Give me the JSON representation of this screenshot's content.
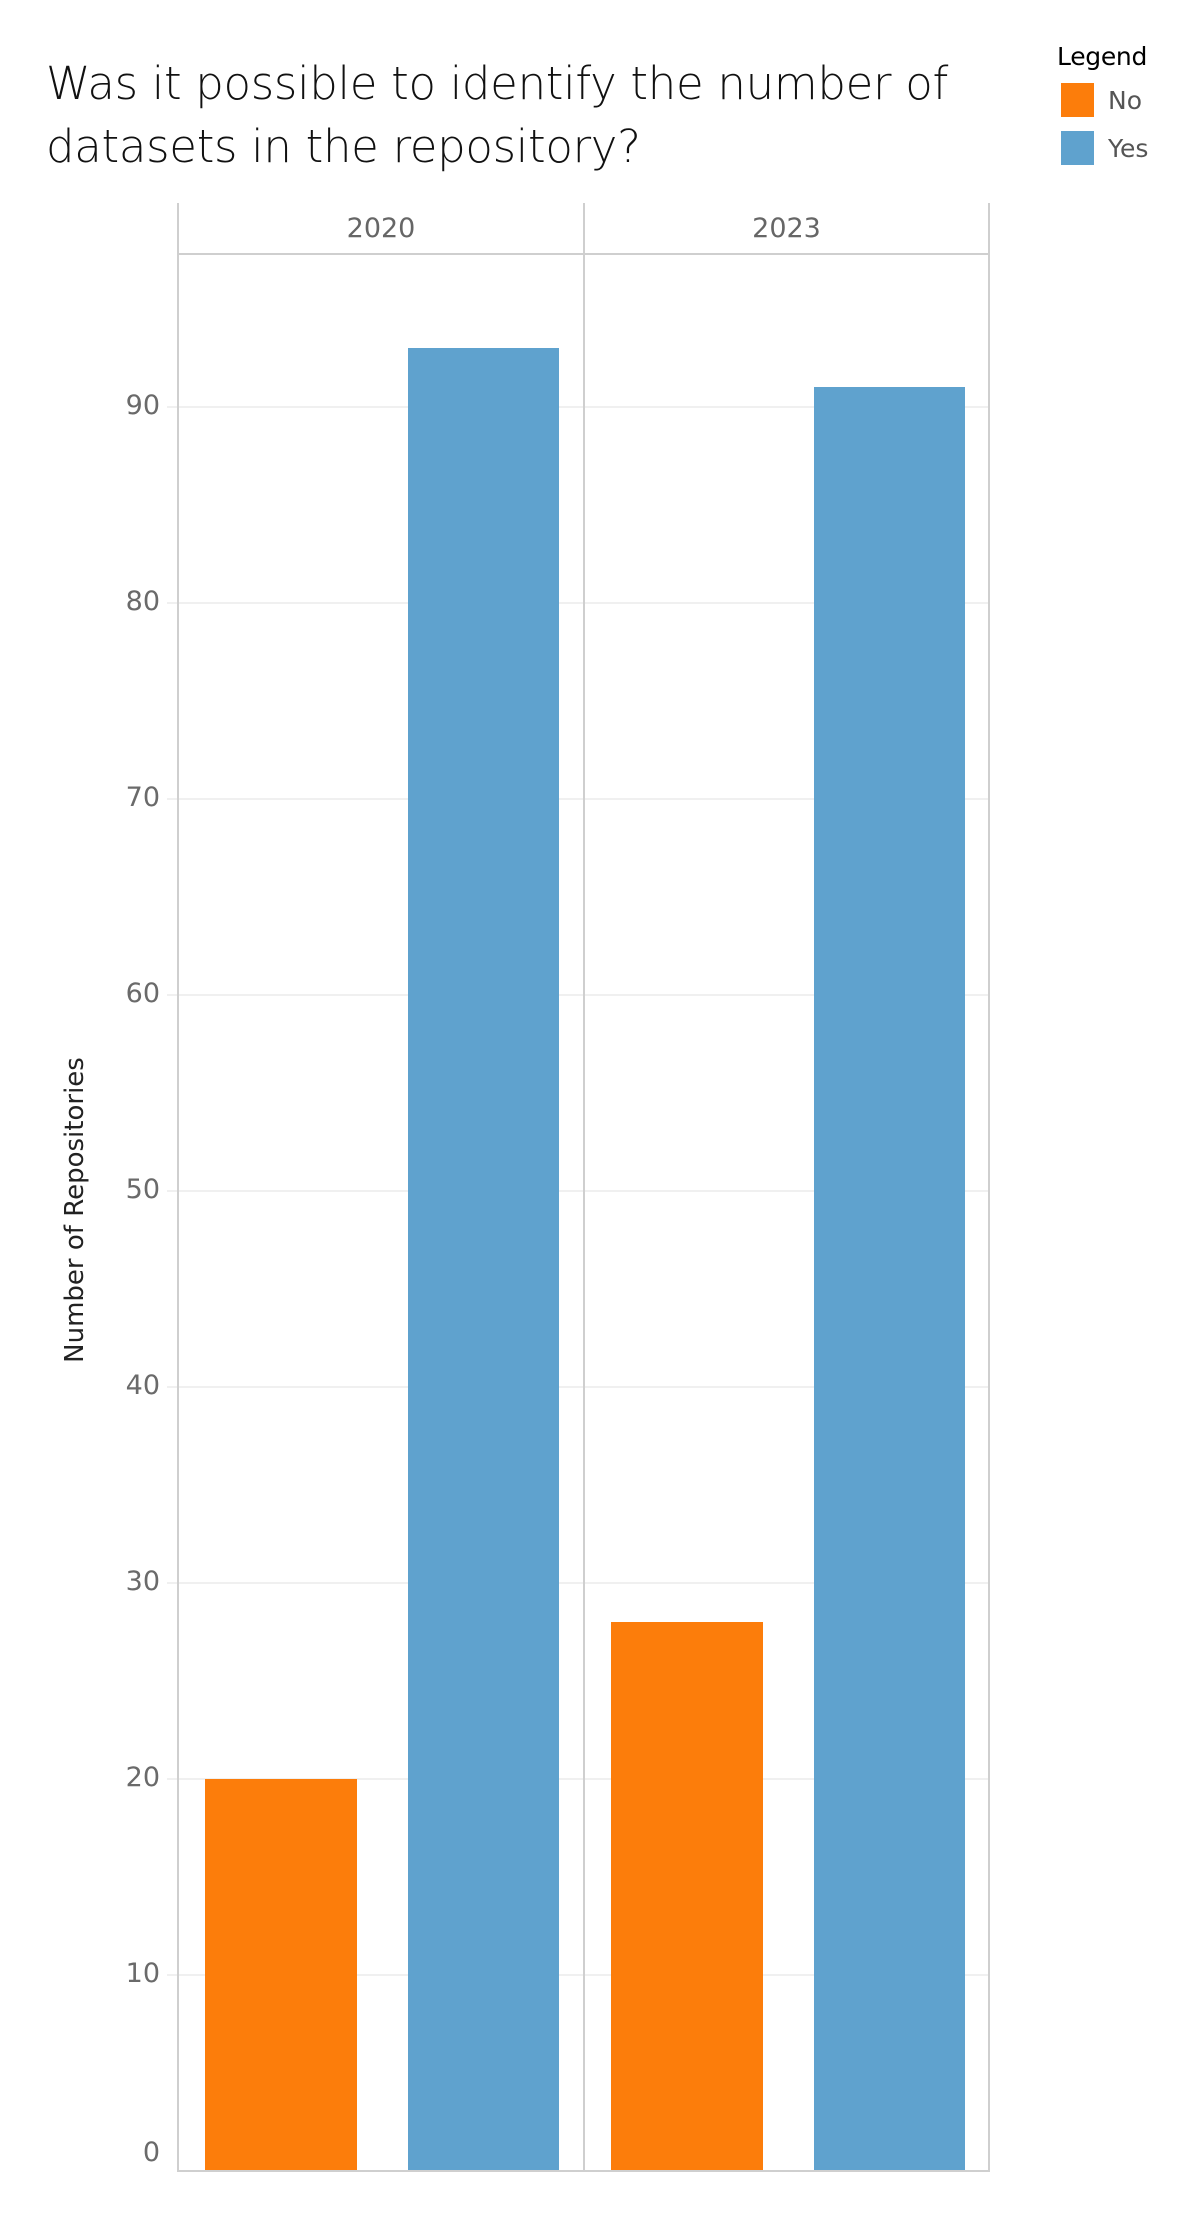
{
  "title": "Was it possible to identify the number of datasets in the repository?",
  "title_lines": [
    "Was it possible to identify the number of",
    "datasets in the repository?"
  ],
  "legend": {
    "title": "Legend",
    "items": [
      {
        "label": "No",
        "color": "#fc7d0b"
      },
      {
        "label": "Yes",
        "color": "#5fa2ce"
      }
    ]
  },
  "y_axis": {
    "title": "Number of Repositories",
    "ticks": [
      "0",
      "10",
      "20",
      "30",
      "40",
      "50",
      "60",
      "70",
      "80",
      "90"
    ]
  },
  "panels": [
    {
      "label": "2020"
    },
    {
      "label": "2023"
    }
  ],
  "chart_data": {
    "type": "bar",
    "title": "Was it possible to identify the number of datasets in the repository?",
    "xlabel": "",
    "ylabel": "Number of Repositories",
    "facets": [
      "2020",
      "2023"
    ],
    "categories": [
      "2020",
      "2023"
    ],
    "series": [
      {
        "name": "No",
        "color": "#fc7d0b",
        "values": [
          20,
          28
        ]
      },
      {
        "name": "Yes",
        "color": "#5fa2ce",
        "values": [
          93,
          91
        ]
      }
    ],
    "ylim": [
      0,
      98
    ],
    "yticks": [
      0,
      10,
      20,
      30,
      40,
      50,
      60,
      70,
      80,
      90
    ],
    "grid": true,
    "legend_position": "top-right"
  }
}
